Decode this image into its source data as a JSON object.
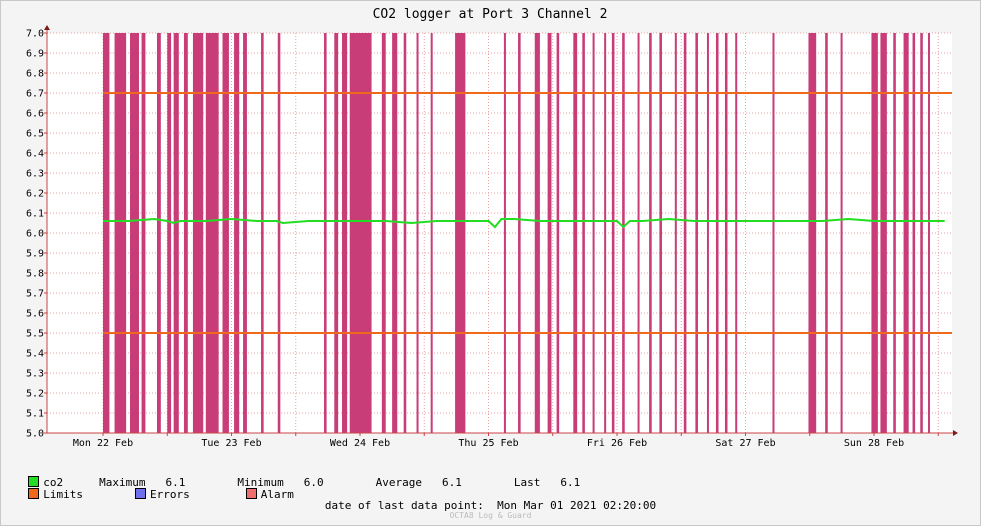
{
  "chart_data": {
    "type": "line",
    "title": "CO2 logger at Port 3 Channel 2",
    "ylim": [
      5.0,
      7.0
    ],
    "y_ticks": [
      "5.0",
      "5.1",
      "5.2",
      "5.3",
      "5.4",
      "5.5",
      "5.6",
      "5.7",
      "5.8",
      "5.9",
      "6.0",
      "6.1",
      "6.2",
      "6.3",
      "6.4",
      "6.5",
      "6.6",
      "6.7",
      "6.8",
      "6.9",
      "7.0"
    ],
    "x_ticks": [
      "Mon 22 Feb",
      "Tue 23 Feb",
      "Wed 24 Feb",
      "Thu 25 Feb",
      "Fri 26 Feb",
      "Sat 27 Feb",
      "Sun 28 Feb"
    ],
    "x_range_days": [
      0,
      6.55
    ],
    "grid": true,
    "limits": {
      "upper": 6.7,
      "lower": 5.5,
      "start_day": 0
    },
    "series": [
      {
        "name": "co2",
        "color": "#22dd22",
        "x_days": [
          0.0,
          0.2,
          0.4,
          0.5,
          0.55,
          0.6,
          0.8,
          1.0,
          1.2,
          1.35,
          1.4,
          1.6,
          1.8,
          2.0,
          2.1,
          2.2,
          2.4,
          2.6,
          2.8,
          3.0,
          3.05,
          3.1,
          3.2,
          3.4,
          3.6,
          3.8,
          4.0,
          4.05,
          4.1,
          4.2,
          4.4,
          4.6,
          4.8,
          5.0,
          5.2,
          5.4,
          5.6,
          5.8,
          6.0,
          6.2,
          6.4,
          6.55
        ],
        "values": [
          6.06,
          6.06,
          6.07,
          6.06,
          6.05,
          6.06,
          6.06,
          6.07,
          6.06,
          6.06,
          6.05,
          6.06,
          6.06,
          6.06,
          6.06,
          6.06,
          6.05,
          6.06,
          6.06,
          6.06,
          6.03,
          6.07,
          6.07,
          6.06,
          6.06,
          6.06,
          6.06,
          6.03,
          6.06,
          6.06,
          6.07,
          6.06,
          6.06,
          6.06,
          6.06,
          6.06,
          6.06,
          6.07,
          6.06,
          6.06,
          6.06,
          6.06
        ]
      }
    ],
    "alarm_color": "#c83c78",
    "alarm_intervals_days": [
      [
        0.0,
        0.05
      ],
      [
        0.09,
        0.18
      ],
      [
        0.21,
        0.28
      ],
      [
        0.3,
        0.33
      ],
      [
        0.42,
        0.45
      ],
      [
        0.5,
        0.53
      ],
      [
        0.55,
        0.59
      ],
      [
        0.63,
        0.66
      ],
      [
        0.7,
        0.78
      ],
      [
        0.8,
        0.9
      ],
      [
        0.93,
        0.98
      ],
      [
        1.02,
        1.06
      ],
      [
        1.09,
        1.12
      ],
      [
        1.23,
        1.25
      ],
      [
        1.36,
        1.38
      ],
      [
        1.72,
        1.74
      ],
      [
        1.8,
        1.83
      ],
      [
        1.86,
        1.9
      ],
      [
        1.92,
        2.09
      ],
      [
        2.17,
        2.2
      ],
      [
        2.25,
        2.29
      ],
      [
        2.34,
        2.36
      ],
      [
        2.44,
        2.45
      ],
      [
        2.55,
        2.56
      ],
      [
        2.74,
        2.82
      ],
      [
        3.12,
        3.13
      ],
      [
        3.23,
        3.25
      ],
      [
        3.36,
        3.4
      ],
      [
        3.46,
        3.49
      ],
      [
        3.53,
        3.55
      ],
      [
        3.66,
        3.69
      ],
      [
        3.73,
        3.75
      ],
      [
        3.81,
        3.82
      ],
      [
        3.9,
        3.91
      ],
      [
        3.96,
        3.98
      ],
      [
        4.04,
        4.06
      ],
      [
        4.16,
        4.17
      ],
      [
        4.25,
        4.27
      ],
      [
        4.33,
        4.35
      ],
      [
        4.45,
        4.46
      ],
      [
        4.52,
        4.54
      ],
      [
        4.61,
        4.63
      ],
      [
        4.7,
        4.71
      ],
      [
        4.77,
        4.79
      ],
      [
        4.84,
        4.86
      ],
      [
        4.92,
        4.93
      ],
      [
        5.21,
        5.22
      ],
      [
        5.49,
        5.55
      ],
      [
        5.62,
        5.64
      ],
      [
        5.74,
        5.75
      ],
      [
        5.98,
        6.03
      ],
      [
        6.05,
        6.1
      ],
      [
        6.15,
        6.17
      ],
      [
        6.23,
        6.27
      ],
      [
        6.3,
        6.32
      ],
      [
        6.36,
        6.38
      ],
      [
        6.42,
        6.43
      ]
    ]
  },
  "legend": {
    "series_name": "co2",
    "maximum_label": "Maximum",
    "maximum_value": "6.1",
    "minimum_label": "Minimum",
    "minimum_value": "6.0",
    "average_label": "Average",
    "average_value": "6.1",
    "last_label": "Last",
    "last_value": "6.1",
    "limits_label": "Limits",
    "errors_label": "Errors",
    "alarm_label": "Alarm",
    "co2_color": "#22dd22",
    "limits_color": "#ee6a1a",
    "errors_color": "#6e6eee",
    "alarm_color": "#ee6e6e"
  },
  "footer": {
    "last_point_label": "date of last data point:",
    "last_point_value": "Mon Mar 01 2021 02:20:00",
    "credit": "OCTA8 Log & Guard"
  }
}
